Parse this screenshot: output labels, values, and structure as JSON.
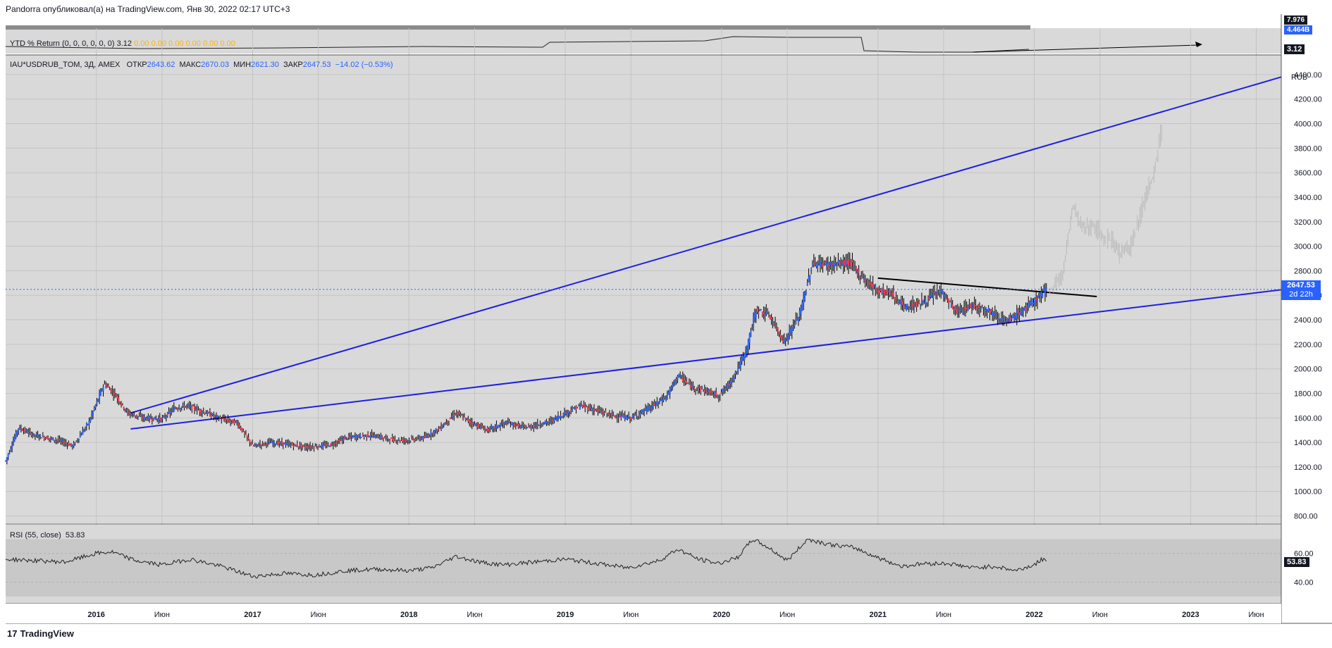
{
  "header": {
    "text": "Pandorra опубликовал(а) на TradingView.com, Янв 30, 2022 02:17 UTC+3"
  },
  "ytd_pane": {
    "label": "YTD % Return (0, 0, 0, 0, 0, 0)",
    "value": "3.12",
    "orange_values": "0.00  0.00  0.00  0.00  0.00  0.00",
    "badge": "3.12",
    "top_badge_1": "7.976",
    "top_badge_2": "4.464B"
  },
  "main_legend": {
    "symbol": "IAU*USDRUB_TOM, 3Д, AMEX",
    "open_label": "ОТКР",
    "open": "2643.62",
    "high_label": "МАКС",
    "high": "2670.03",
    "low_label": "МИН",
    "low": "2621.30",
    "close_label": "ЗАКР",
    "close": "2647.53",
    "change": "−14.02 (−0.53%)"
  },
  "price_badge": {
    "price": "2647.53",
    "countdown": "2d 22h"
  },
  "rsi": {
    "label": "RSI (55, close)",
    "value": "53.83",
    "badge": "53.83"
  },
  "footer": {
    "brand": "TradingView",
    "logo": "17"
  },
  "colors": {
    "up": "#2962ff",
    "down": "#f23645",
    "line": "#1f1fe0",
    "bg": "#d9d9d9",
    "rsi_band": "#c8c8c8"
  },
  "chart_data": {
    "type": "candlestick",
    "currency": "RUB",
    "y_ticks": [
      800,
      1000,
      1200,
      1400,
      1600,
      1800,
      2000,
      2200,
      2400,
      2600,
      2800,
      3000,
      3200,
      3400,
      3600,
      3800,
      4000,
      4200,
      4400
    ],
    "y_tick_labels": [
      "800.00",
      "1000.00",
      "1200.00",
      "1400.00",
      "1600.00",
      "1800.00",
      "2000.00",
      "2200.00",
      "2400.00",
      "2600.00",
      "2800.00",
      "3000.00",
      "3200.00",
      "3400.00",
      "3600.00",
      "3800.00",
      "4000.00",
      "4200.00",
      "4400.00"
    ],
    "ylim": [
      740,
      4560
    ],
    "xlim": [
      2015.42,
      2023.58
    ],
    "x_ticks": [
      {
        "t": 2016.0,
        "label": "2016",
        "bold": true
      },
      {
        "t": 2016.42,
        "label": "Июн",
        "bold": false
      },
      {
        "t": 2017.0,
        "label": "2017",
        "bold": true
      },
      {
        "t": 2017.42,
        "label": "Июн",
        "bold": false
      },
      {
        "t": 2018.0,
        "label": "2018",
        "bold": true
      },
      {
        "t": 2018.42,
        "label": "Июн",
        "bold": false
      },
      {
        "t": 2019.0,
        "label": "2019",
        "bold": true
      },
      {
        "t": 2019.42,
        "label": "Июн",
        "bold": false
      },
      {
        "t": 2020.0,
        "label": "2020",
        "bold": true
      },
      {
        "t": 2020.42,
        "label": "Июн",
        "bold": false
      },
      {
        "t": 2021.0,
        "label": "2021",
        "bold": true
      },
      {
        "t": 2021.42,
        "label": "Июн",
        "bold": false
      },
      {
        "t": 2022.0,
        "label": "2022",
        "bold": true
      },
      {
        "t": 2022.42,
        "label": "Июн",
        "bold": false
      },
      {
        "t": 2023.0,
        "label": "2023",
        "bold": true
      },
      {
        "t": 2023.42,
        "label": "Июн",
        "bold": false
      }
    ],
    "price_path": [
      [
        2015.42,
        1250
      ],
      [
        2015.5,
        1520
      ],
      [
        2015.6,
        1460
      ],
      [
        2015.75,
        1420
      ],
      [
        2015.85,
        1370
      ],
      [
        2015.95,
        1560
      ],
      [
        2016.05,
        1880
      ],
      [
        2016.12,
        1790
      ],
      [
        2016.2,
        1640
      ],
      [
        2016.3,
        1600
      ],
      [
        2016.42,
        1590
      ],
      [
        2016.5,
        1680
      ],
      [
        2016.58,
        1700
      ],
      [
        2016.7,
        1640
      ],
      [
        2016.8,
        1590
      ],
      [
        2016.9,
        1560
      ],
      [
        2017.0,
        1370
      ],
      [
        2017.1,
        1400
      ],
      [
        2017.2,
        1390
      ],
      [
        2017.35,
        1360
      ],
      [
        2017.5,
        1380
      ],
      [
        2017.6,
        1440
      ],
      [
        2017.75,
        1460
      ],
      [
        2017.9,
        1420
      ],
      [
        2018.0,
        1420
      ],
      [
        2018.1,
        1440
      ],
      [
        2018.2,
        1520
      ],
      [
        2018.3,
        1640
      ],
      [
        2018.4,
        1560
      ],
      [
        2018.5,
        1500
      ],
      [
        2018.62,
        1560
      ],
      [
        2018.75,
        1520
      ],
      [
        2018.9,
        1570
      ],
      [
        2019.0,
        1640
      ],
      [
        2019.1,
        1700
      ],
      [
        2019.2,
        1660
      ],
      [
        2019.3,
        1620
      ],
      [
        2019.42,
        1600
      ],
      [
        2019.55,
        1690
      ],
      [
        2019.65,
        1780
      ],
      [
        2019.72,
        1950
      ],
      [
        2019.8,
        1860
      ],
      [
        2019.9,
        1820
      ],
      [
        2019.98,
        1780
      ],
      [
        2020.05,
        1880
      ],
      [
        2020.15,
        2120
      ],
      [
        2020.22,
        2480
      ],
      [
        2020.3,
        2440
      ],
      [
        2020.4,
        2220
      ],
      [
        2020.5,
        2450
      ],
      [
        2020.58,
        2860
      ],
      [
        2020.7,
        2850
      ],
      [
        2020.82,
        2870
      ],
      [
        2020.9,
        2740
      ],
      [
        2021.0,
        2640
      ],
      [
        2021.08,
        2620
      ],
      [
        2021.17,
        2500
      ],
      [
        2021.3,
        2550
      ],
      [
        2021.4,
        2640
      ],
      [
        2021.5,
        2460
      ],
      [
        2021.6,
        2520
      ],
      [
        2021.7,
        2480
      ],
      [
        2021.82,
        2380
      ],
      [
        2021.95,
        2500
      ],
      [
        2022.02,
        2580
      ],
      [
        2022.08,
        2647.53
      ]
    ],
    "projection_path": [
      [
        2022.1,
        2640
      ],
      [
        2022.18,
        2760
      ],
      [
        2022.25,
        3340
      ],
      [
        2022.3,
        3150
      ],
      [
        2022.38,
        3160
      ],
      [
        2022.45,
        3080
      ],
      [
        2022.5,
        3040
      ],
      [
        2022.55,
        2930
      ],
      [
        2022.62,
        3000
      ],
      [
        2022.7,
        3350
      ],
      [
        2022.77,
        3600
      ],
      [
        2022.82,
        3980
      ]
    ],
    "trendlines": [
      {
        "name": "upper",
        "from": [
          2016.22,
          1640
        ],
        "to": [
          2023.58,
          4380
        ],
        "color": "#1f1fe0"
      },
      {
        "name": "lower",
        "from": [
          2016.22,
          1510
        ],
        "to": [
          2023.58,
          2645
        ],
        "color": "#1f1fe0"
      },
      {
        "name": "resistance",
        "from": [
          2021.0,
          2740
        ],
        "to": [
          2022.4,
          2590
        ],
        "color": "#000000"
      }
    ],
    "last_price": 2647.53,
    "rsi_ticks": [
      40,
      60
    ],
    "rsi_tick_labels": [
      "40.00",
      "60.00"
    ],
    "rsi_ylim": [
      25,
      80
    ],
    "rsi_band": [
      30,
      70
    ],
    "rsi_path": [
      [
        2015.42,
        56
      ],
      [
        2015.6,
        55
      ],
      [
        2015.8,
        54
      ],
      [
        2016.0,
        60
      ],
      [
        2016.1,
        61
      ],
      [
        2016.25,
        55
      ],
      [
        2016.42,
        52
      ],
      [
        2016.6,
        56
      ],
      [
        2016.8,
        51
      ],
      [
        2017.0,
        44
      ],
      [
        2017.2,
        46
      ],
      [
        2017.4,
        45
      ],
      [
        2017.6,
        48
      ],
      [
        2017.8,
        49
      ],
      [
        2018.0,
        48
      ],
      [
        2018.15,
        50
      ],
      [
        2018.3,
        58
      ],
      [
        2018.45,
        54
      ],
      [
        2018.6,
        52
      ],
      [
        2018.8,
        54
      ],
      [
        2019.0,
        56
      ],
      [
        2019.2,
        53
      ],
      [
        2019.4,
        50
      ],
      [
        2019.6,
        55
      ],
      [
        2019.72,
        63
      ],
      [
        2019.85,
        56
      ],
      [
        2019.98,
        53
      ],
      [
        2020.1,
        57
      ],
      [
        2020.2,
        70
      ],
      [
        2020.3,
        64
      ],
      [
        2020.42,
        55
      ],
      [
        2020.55,
        70
      ],
      [
        2020.7,
        66
      ],
      [
        2020.85,
        64
      ],
      [
        2021.0,
        57
      ],
      [
        2021.15,
        51
      ],
      [
        2021.3,
        53
      ],
      [
        2021.45,
        53
      ],
      [
        2021.6,
        50
      ],
      [
        2021.75,
        51
      ],
      [
        2021.88,
        48
      ],
      [
        2022.0,
        52
      ],
      [
        2022.05,
        56
      ],
      [
        2022.08,
        53.83
      ]
    ]
  }
}
